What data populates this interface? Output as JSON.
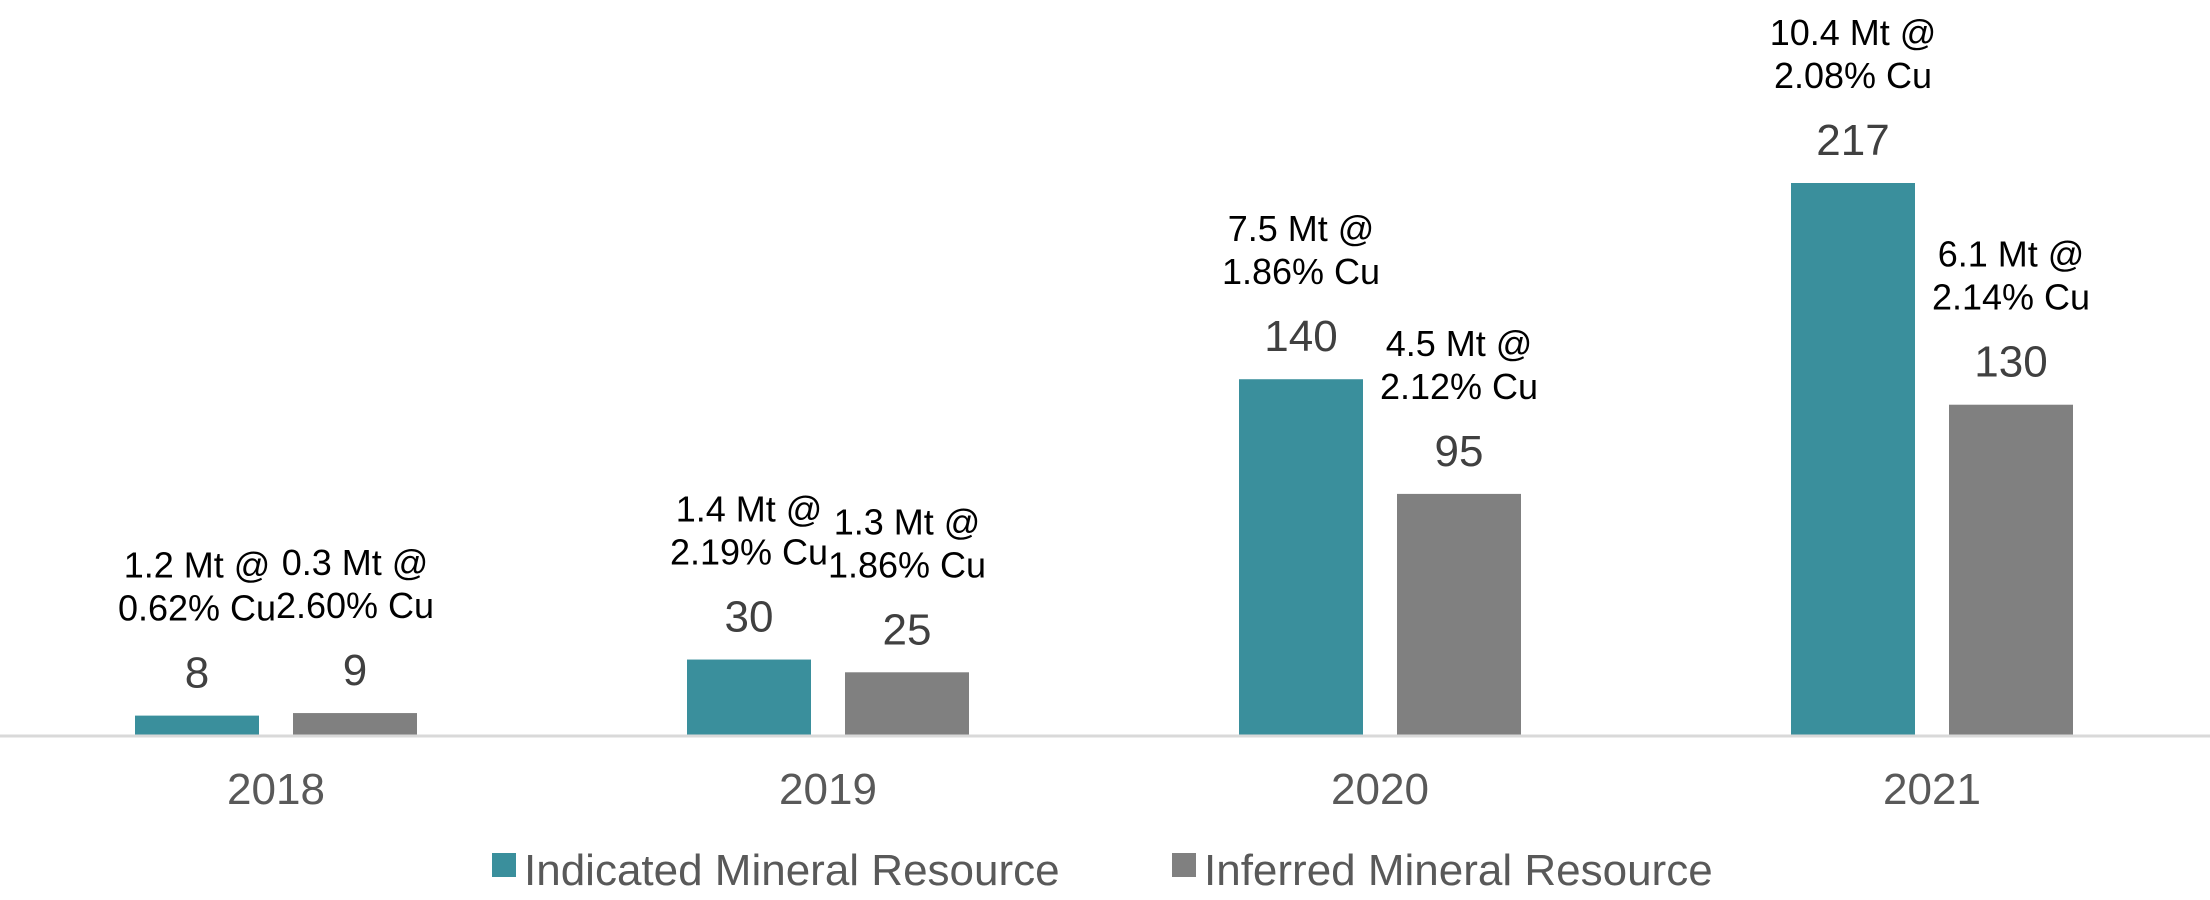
{
  "chart_data": {
    "type": "bar",
    "categories": [
      "2018",
      "2019",
      "2020",
      "2021"
    ],
    "series": [
      {
        "name": "Indicated Mineral Resource",
        "color": "#3a8f9c",
        "values": [
          8,
          30,
          140,
          217
        ],
        "annotations": [
          [
            "1.2 Mt @",
            "0.62% Cu"
          ],
          [
            "1.4 Mt @",
            "2.19% Cu"
          ],
          [
            "7.5 Mt @",
            "1.86% Cu"
          ],
          [
            "10.4 Mt @",
            "2.08% Cu"
          ]
        ]
      },
      {
        "name": "Inferred Mineral Resource",
        "color": "#808080",
        "values": [
          9,
          25,
          95,
          130
        ],
        "annotations": [
          [
            "0.3 Mt @",
            "2.60% Cu"
          ],
          [
            "1.3 Mt @",
            "1.86% Cu"
          ],
          [
            "4.5 Mt @",
            "2.12% Cu"
          ],
          [
            "6.1 Mt @",
            "2.14% Cu"
          ]
        ]
      }
    ],
    "title": "",
    "xlabel": "",
    "ylabel": "",
    "ylim": [
      0,
      217
    ],
    "grid": false,
    "legend": "bottom"
  }
}
